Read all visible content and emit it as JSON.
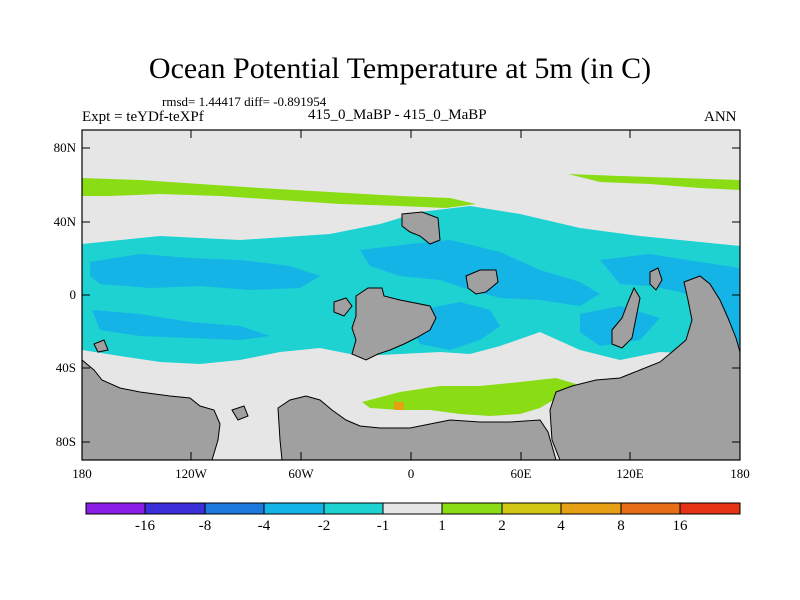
{
  "title": "Ocean Potential Temperature at 5m (in C)",
  "stats": "rmsd= 1.44417 diff= -0.891954",
  "expt": "Expt = teYDf-teXPf",
  "center_label": "415_0_MaBP - 415_0_MaBP",
  "season": "ANN",
  "lat_labels": [
    "80N",
    "40N",
    "0",
    "40S",
    "80S"
  ],
  "lon_labels": [
    "180",
    "120W",
    "60W",
    "0",
    "60E",
    "120E",
    "180"
  ],
  "colorbar": {
    "labels": [
      "-16",
      "-8",
      "-4",
      "-2",
      "-1",
      "1",
      "2",
      "4",
      "8",
      "16"
    ],
    "colors": [
      "#8a1ee6",
      "#3a2fd8",
      "#1c78dc",
      "#14b4e6",
      "#1ed2d2",
      "#e6e6e6",
      "#8adc14",
      "#d2c814",
      "#e6a014",
      "#e66e14",
      "#e63214"
    ]
  },
  "map_colors": {
    "land": "#a0a0a0",
    "neutral": "#e6e6e6",
    "light_cyan": "#1ed2d2",
    "mid_blue": "#14b4e6",
    "green": "#8adc14",
    "orange": "#e6a014"
  }
}
